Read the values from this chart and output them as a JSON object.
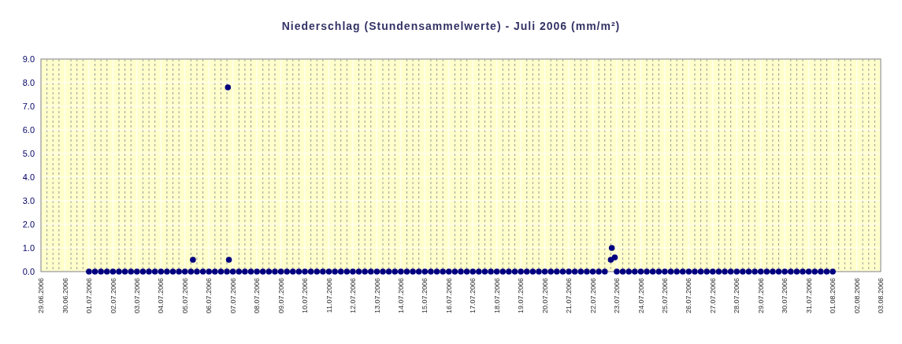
{
  "chart_data": {
    "type": "scatter",
    "title": "Niederschlag (Stundensammelwerte) - Juli 2006 (mm/m²)",
    "xlim": [
      "2006-06-29",
      "2006-08-03"
    ],
    "xticks": [
      {
        "value": "2006-06-29",
        "label": "29.06.2006"
      },
      {
        "value": "2006-06-30",
        "label": "30.06.2006"
      },
      {
        "value": "2006-07-01",
        "label": "01.07.2006"
      },
      {
        "value": "2006-07-02",
        "label": "02.07.2006"
      },
      {
        "value": "2006-07-03",
        "label": "03.07.2006"
      },
      {
        "value": "2006-07-04",
        "label": "04.07.2006"
      },
      {
        "value": "2006-07-05",
        "label": "05.07.2006"
      },
      {
        "value": "2006-07-06",
        "label": "06.07.2006"
      },
      {
        "value": "2006-07-07",
        "label": "07.07.2006"
      },
      {
        "value": "2006-07-08",
        "label": "08.07.2006"
      },
      {
        "value": "2006-07-09",
        "label": "09.07.2006"
      },
      {
        "value": "2006-07-10",
        "label": "10.07.2006"
      },
      {
        "value": "2006-07-11",
        "label": "11.07.2006"
      },
      {
        "value": "2006-07-12",
        "label": "12.07.2006"
      },
      {
        "value": "2006-07-13",
        "label": "13.07.2006"
      },
      {
        "value": "2006-07-14",
        "label": "14.07.2006"
      },
      {
        "value": "2006-07-15",
        "label": "15.07.2006"
      },
      {
        "value": "2006-07-16",
        "label": "16.07.2006"
      },
      {
        "value": "2006-07-17",
        "label": "17.07.2006"
      },
      {
        "value": "2006-07-18",
        "label": "18.07.2006"
      },
      {
        "value": "2006-07-19",
        "label": "19.07.2006"
      },
      {
        "value": "2006-07-20",
        "label": "20.07.2006"
      },
      {
        "value": "2006-07-21",
        "label": "21.07.2006"
      },
      {
        "value": "2006-07-22",
        "label": "22.07.2006"
      },
      {
        "value": "2006-07-23",
        "label": "23.07.2006"
      },
      {
        "value": "2006-07-24",
        "label": "24.07.2006"
      },
      {
        "value": "2006-07-25",
        "label": "25.07.2006"
      },
      {
        "value": "2006-07-26",
        "label": "26.07.2006"
      },
      {
        "value": "2006-07-27",
        "label": "27.07.2006"
      },
      {
        "value": "2006-07-28",
        "label": "28.07.2006"
      },
      {
        "value": "2006-07-29",
        "label": "29.07.2006"
      },
      {
        "value": "2006-07-30",
        "label": "30.07.2006"
      },
      {
        "value": "2006-07-31",
        "label": "31.07.2006"
      },
      {
        "value": "2006-08-01",
        "label": "01.08.2006"
      },
      {
        "value": "2006-08-02",
        "label": "02.08.2006"
      },
      {
        "value": "2006-08-03",
        "label": "03.08.2006"
      }
    ],
    "ylim": [
      0,
      9
    ],
    "yticks": [
      {
        "value": 0,
        "label": "0.0"
      },
      {
        "value": 1,
        "label": "1.0"
      },
      {
        "value": 2,
        "label": "2.0"
      },
      {
        "value": 3,
        "label": "3.0"
      },
      {
        "value": 4,
        "label": "4.0"
      },
      {
        "value": 5,
        "label": "5.0"
      },
      {
        "value": 6,
        "label": "6.0"
      },
      {
        "value": 7,
        "label": "7.0"
      },
      {
        "value": 8,
        "label": "8.0"
      },
      {
        "value": 9,
        "label": "9.0"
      }
    ],
    "grid": true,
    "marker": "circle",
    "series": [
      {
        "color": "#000080",
        "x": [
          "2006-07-01T00:00",
          "2006-07-01T06:00",
          "2006-07-01T12:00",
          "2006-07-01T18:00",
          "2006-07-02T00:00",
          "2006-07-02T06:00",
          "2006-07-02T12:00",
          "2006-07-02T18:00",
          "2006-07-03T00:00",
          "2006-07-03T06:00",
          "2006-07-03T12:00",
          "2006-07-03T18:00",
          "2006-07-04T00:00",
          "2006-07-04T06:00",
          "2006-07-04T12:00",
          "2006-07-04T18:00",
          "2006-07-05T00:00",
          "2006-07-05T06:00",
          "2006-07-05T08:00",
          "2006-07-05T12:00",
          "2006-07-05T18:00",
          "2006-07-06T00:00",
          "2006-07-06T06:00",
          "2006-07-06T12:00",
          "2006-07-06T18:00",
          "2006-07-06T19:00",
          "2006-07-06T20:00",
          "2006-07-07T00:00",
          "2006-07-07T06:00",
          "2006-07-07T12:00",
          "2006-07-07T18:00",
          "2006-07-08T00:00",
          "2006-07-08T06:00",
          "2006-07-08T12:00",
          "2006-07-08T18:00",
          "2006-07-09T00:00",
          "2006-07-09T06:00",
          "2006-07-09T12:00",
          "2006-07-09T18:00",
          "2006-07-10T00:00",
          "2006-07-10T06:00",
          "2006-07-10T12:00",
          "2006-07-10T18:00",
          "2006-07-11T00:00",
          "2006-07-11T06:00",
          "2006-07-11T12:00",
          "2006-07-11T18:00",
          "2006-07-12T00:00",
          "2006-07-12T06:00",
          "2006-07-12T12:00",
          "2006-07-12T18:00",
          "2006-07-13T00:00",
          "2006-07-13T06:00",
          "2006-07-13T12:00",
          "2006-07-13T18:00",
          "2006-07-14T00:00",
          "2006-07-14T06:00",
          "2006-07-14T12:00",
          "2006-07-14T18:00",
          "2006-07-15T00:00",
          "2006-07-15T06:00",
          "2006-07-15T12:00",
          "2006-07-15T18:00",
          "2006-07-16T00:00",
          "2006-07-16T06:00",
          "2006-07-16T12:00",
          "2006-07-16T18:00",
          "2006-07-17T00:00",
          "2006-07-17T06:00",
          "2006-07-17T12:00",
          "2006-07-17T18:00",
          "2006-07-18T00:00",
          "2006-07-18T06:00",
          "2006-07-18T12:00",
          "2006-07-18T18:00",
          "2006-07-19T00:00",
          "2006-07-19T06:00",
          "2006-07-19T12:00",
          "2006-07-19T18:00",
          "2006-07-20T00:00",
          "2006-07-20T06:00",
          "2006-07-20T12:00",
          "2006-07-20T18:00",
          "2006-07-21T00:00",
          "2006-07-21T06:00",
          "2006-07-21T12:00",
          "2006-07-21T18:00",
          "2006-07-22T00:00",
          "2006-07-22T06:00",
          "2006-07-22T12:00",
          "2006-07-22T18:00",
          "2006-07-22T19:00",
          "2006-07-22T22:00",
          "2006-07-23T00:00",
          "2006-07-23T06:00",
          "2006-07-23T12:00",
          "2006-07-23T18:00",
          "2006-07-24T00:00",
          "2006-07-24T06:00",
          "2006-07-24T12:00",
          "2006-07-24T18:00",
          "2006-07-25T00:00",
          "2006-07-25T06:00",
          "2006-07-25T12:00",
          "2006-07-25T18:00",
          "2006-07-26T00:00",
          "2006-07-26T06:00",
          "2006-07-26T12:00",
          "2006-07-26T18:00",
          "2006-07-27T00:00",
          "2006-07-27T06:00",
          "2006-07-27T12:00",
          "2006-07-27T18:00",
          "2006-07-28T00:00",
          "2006-07-28T06:00",
          "2006-07-28T12:00",
          "2006-07-28T18:00",
          "2006-07-29T00:00",
          "2006-07-29T06:00",
          "2006-07-29T12:00",
          "2006-07-29T18:00",
          "2006-07-30T00:00",
          "2006-07-30T06:00",
          "2006-07-30T12:00",
          "2006-07-30T18:00",
          "2006-07-31T00:00",
          "2006-07-31T06:00",
          "2006-07-31T12:00",
          "2006-07-31T18:00",
          "2006-08-01T00:00"
        ],
        "values": [
          0,
          0,
          0,
          0,
          0,
          0,
          0,
          0,
          0,
          0,
          0,
          0,
          0,
          0,
          0,
          0,
          0,
          0,
          0.5,
          0,
          0,
          0,
          0,
          0,
          0,
          7.8,
          0.5,
          0,
          0,
          0,
          0,
          0,
          0,
          0,
          0,
          0,
          0,
          0,
          0,
          0,
          0,
          0,
          0,
          0,
          0,
          0,
          0,
          0,
          0,
          0,
          0,
          0,
          0,
          0,
          0,
          0,
          0,
          0,
          0,
          0,
          0,
          0,
          0,
          0,
          0,
          0,
          0,
          0,
          0,
          0,
          0,
          0,
          0,
          0,
          0,
          0,
          0,
          0,
          0,
          0,
          0,
          0,
          0,
          0,
          0,
          0,
          0,
          0,
          0,
          0,
          0.5,
          1.0,
          0.6,
          0,
          0,
          0,
          0,
          0,
          0,
          0,
          0,
          0,
          0,
          0,
          0,
          0,
          0,
          0,
          0,
          0,
          0,
          0,
          0,
          0,
          0,
          0,
          0,
          0,
          0,
          0,
          0,
          0,
          0,
          0,
          0,
          0,
          0,
          0,
          0,
          0
        ]
      }
    ]
  }
}
